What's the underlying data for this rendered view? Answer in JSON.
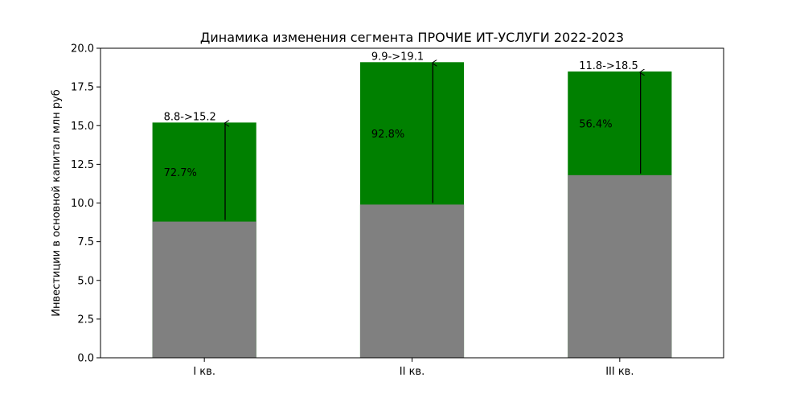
{
  "chart_data": {
    "type": "bar",
    "title": "Динамика изменения сегмента ПРОЧИЕ ИТ-УСЛУГИ 2022-2023",
    "xlabel": "",
    "ylabel": "Инвестиции в основной капитал млн руб",
    "categories": [
      "I кв.",
      "II кв.",
      "III кв."
    ],
    "series": [
      {
        "values": [
          8.8,
          9.9,
          11.8
        ],
        "color": "#808080"
      },
      {
        "values": [
          15.2,
          19.1,
          18.5
        ],
        "color": "#008000"
      }
    ],
    "bar_labels": [
      "8.8->15.2",
      "9.9->19.1",
      "11.8->18.5"
    ],
    "change_labels": [
      "72.7%",
      "92.8%",
      "56.4%"
    ],
    "ylim": [
      0,
      20
    ],
    "yticks": [
      "0.0",
      "2.5",
      "5.0",
      "7.5",
      "10.0",
      "12.5",
      "15.0",
      "17.5",
      "20.0"
    ],
    "grid": false,
    "arrows": true
  }
}
